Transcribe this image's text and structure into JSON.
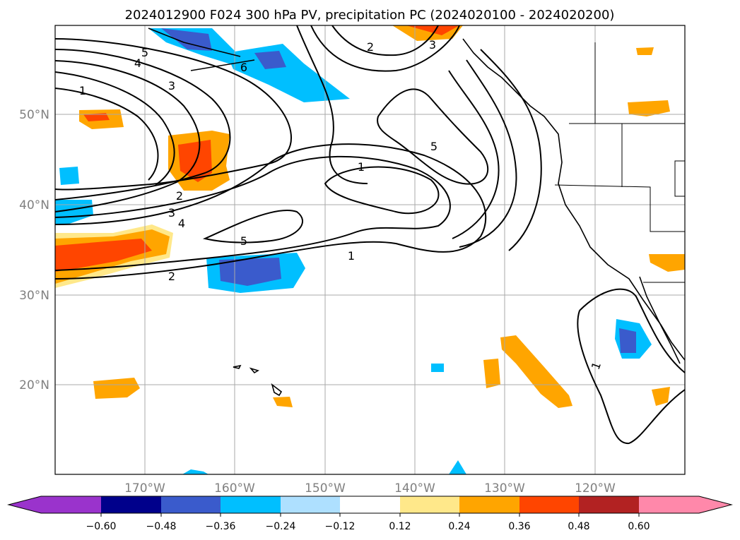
{
  "title": "2024012900 F024 300 hPa PV, precipitation PC (2024020100 - 2024020200)",
  "map": {
    "projection": "PlateCarree",
    "lon_range": [
      -180,
      -110
    ],
    "lat_range": [
      10,
      60
    ],
    "gridlines": true,
    "lat_labels": [
      "50°N",
      "40°N",
      "30°N",
      "20°N"
    ],
    "lon_labels": [
      "170°W",
      "160°W",
      "150°W",
      "140°W",
      "130°W",
      "120°W"
    ],
    "contour_field": "300 hPa PV",
    "contour_labels": [
      "5",
      "4",
      "3",
      "1",
      "6",
      "2",
      "3",
      "5",
      "1",
      "2",
      "3",
      "4",
      "5",
      "1",
      "2",
      "1"
    ],
    "fill_field": "precipitation PC"
  },
  "colorbar": {
    "extend": "both",
    "tick_labels": [
      "−0.60",
      "−0.48",
      "−0.36",
      "−0.24",
      "−0.12",
      "0.12",
      "0.24",
      "0.36",
      "0.48",
      "0.60"
    ],
    "colors": [
      "#9a33cc",
      "#00008b",
      "#3a5bcc",
      "#00bfff",
      "#aee0ff",
      "#ffffff",
      "#ffe88a",
      "#ffa500",
      "#ff4500",
      "#b22222",
      "#ff88aa"
    ]
  }
}
